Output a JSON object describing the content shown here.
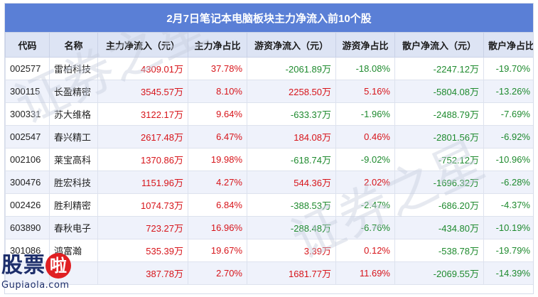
{
  "title": "2月7日笔记本电脑板块主力净流入前10个股",
  "columns": [
    "代码",
    "名称",
    "主力净流入（元）",
    "主力净占比",
    "游资净流入（元）",
    "游资净占比",
    "散户净流入（元）",
    "散户净占比"
  ],
  "rows": [
    {
      "code": "002577",
      "name": "雷柏科技",
      "main_in": "4309.01万",
      "main_pct": "37.78%",
      "hot_in": "-2061.89万",
      "hot_pct": "-18.08%",
      "retail_in": "-2247.12万",
      "retail_pct": "-19.70%"
    },
    {
      "code": "300115",
      "name": "长盈精密",
      "main_in": "3545.57万",
      "main_pct": "8.10%",
      "hot_in": "2258.50万",
      "hot_pct": "5.16%",
      "retail_in": "-5804.08万",
      "retail_pct": "-13.26%"
    },
    {
      "code": "300331",
      "name": "苏大维格",
      "main_in": "3122.17万",
      "main_pct": "9.64%",
      "hot_in": "-633.37万",
      "hot_pct": "-1.96%",
      "retail_in": "-2488.79万",
      "retail_pct": "-7.69%"
    },
    {
      "code": "002547",
      "name": "春兴精工",
      "main_in": "2617.48万",
      "main_pct": "6.47%",
      "hot_in": "184.08万",
      "hot_pct": "0.46%",
      "retail_in": "-2801.56万",
      "retail_pct": "-6.92%"
    },
    {
      "code": "002106",
      "name": "莱宝高科",
      "main_in": "1370.86万",
      "main_pct": "19.98%",
      "hot_in": "-618.74万",
      "hot_pct": "-9.02%",
      "retail_in": "-752.12万",
      "retail_pct": "-10.96%"
    },
    {
      "code": "300476",
      "name": "胜宏科技",
      "main_in": "1151.96万",
      "main_pct": "4.27%",
      "hot_in": "544.36万",
      "hot_pct": "2.02%",
      "retail_in": "-1696.32万",
      "retail_pct": "-6.28%"
    },
    {
      "code": "002426",
      "name": "胜利精密",
      "main_in": "1074.73万",
      "main_pct": "6.84%",
      "hot_in": "-388.53万",
      "hot_pct": "-2.47%",
      "retail_in": "-686.20万",
      "retail_pct": "-4.37%"
    },
    {
      "code": "603890",
      "name": "春秋电子",
      "main_in": "723.27万",
      "main_pct": "16.96%",
      "hot_in": "-288.48万",
      "hot_pct": "-6.76%",
      "retail_in": "-434.80万",
      "retail_pct": "-10.19%"
    },
    {
      "code": "301086",
      "name": "鸿富瀚",
      "main_in": "535.39万",
      "main_pct": "19.67%",
      "hot_in": "3.39万",
      "hot_pct": "0.12%",
      "retail_in": "-538.78万",
      "retail_pct": "-19.79%"
    },
    {
      "code": "",
      "name": "",
      "main_in": "387.78万",
      "main_pct": "2.70%",
      "hot_in": "1681.77万",
      "hot_pct": "11.69%",
      "retail_in": "-2069.55万",
      "retail_pct": "-14.39%"
    }
  ],
  "watermark": "证券之星",
  "logo": {
    "main_chars": [
      "股",
      "票",
      "啦"
    ],
    "site": "Gupiaola.com"
  },
  "colors": {
    "header_blue": "#5a7fd6",
    "positive": "#d7141a",
    "negative": "#1e8a2e"
  }
}
